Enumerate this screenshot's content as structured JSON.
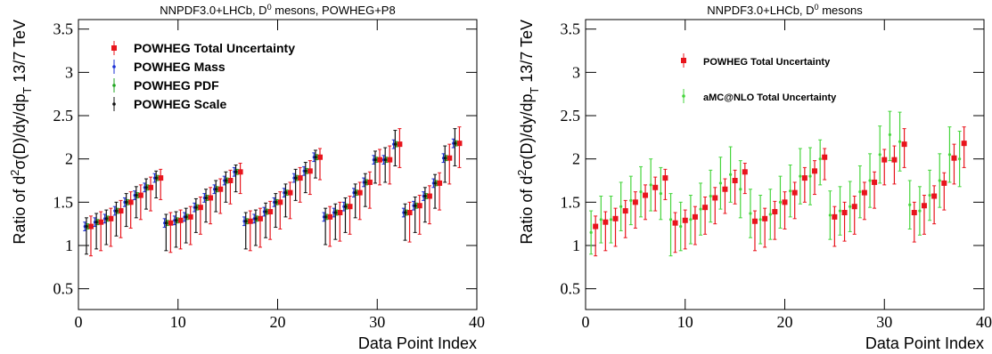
{
  "chart_data": [
    {
      "type": "errorbar",
      "title": [
        "NNPDF3.0+LHCb, D",
        "0",
        " mesons, POWHEG+P8"
      ],
      "ylabel": [
        "Ratio of d",
        "2",
        "σ(D)/dy/dp",
        "T",
        " 13/7 TeV"
      ],
      "xlabel": "Data Point Index",
      "xlim": [
        0,
        40
      ],
      "xticks": [
        0,
        10,
        20,
        30,
        40
      ],
      "ylim": [
        0.26,
        3.61
      ],
      "yticks": [
        0.5,
        1,
        1.5,
        2,
        2.5,
        3,
        3.5
      ],
      "legend": "top-left",
      "x": [
        1,
        2,
        3,
        4,
        5,
        6,
        7,
        8,
        9,
        10,
        11,
        12,
        13,
        14,
        15,
        16,
        17,
        18,
        19,
        20,
        21,
        22,
        23,
        24,
        25,
        26,
        27,
        28,
        29,
        30,
        31,
        32,
        33,
        34,
        35,
        36,
        37,
        38
      ],
      "series": [
        {
          "name": "POWHEG Total Uncertainty",
          "color": "#e8141c",
          "marker": "square",
          "values": [
            1.22,
            1.27,
            1.31,
            1.4,
            1.5,
            1.58,
            1.67,
            1.78,
            1.26,
            1.29,
            1.33,
            1.44,
            1.55,
            1.65,
            1.75,
            1.85,
            1.28,
            1.31,
            1.39,
            1.5,
            1.61,
            1.78,
            1.86,
            2.02,
            1.33,
            1.38,
            1.45,
            1.61,
            1.73,
            1.99,
            1.99,
            2.17,
            1.38,
            1.46,
            1.57,
            1.72,
            2.01,
            2.18
          ],
          "err_low": [
            0.34,
            0.33,
            0.32,
            0.31,
            0.3,
            0.28,
            0.27,
            0.25,
            0.34,
            0.33,
            0.32,
            0.31,
            0.3,
            0.28,
            0.27,
            0.25,
            0.34,
            0.33,
            0.32,
            0.31,
            0.3,
            0.28,
            0.27,
            0.26,
            0.34,
            0.33,
            0.32,
            0.31,
            0.3,
            0.29,
            0.28,
            0.27,
            0.34,
            0.33,
            0.32,
            0.31,
            0.3,
            0.28
          ],
          "err_high": [
            0.12,
            0.12,
            0.12,
            0.12,
            0.12,
            0.12,
            0.12,
            0.1,
            0.12,
            0.12,
            0.12,
            0.12,
            0.12,
            0.12,
            0.12,
            0.1,
            0.12,
            0.12,
            0.12,
            0.12,
            0.12,
            0.12,
            0.12,
            0.1,
            0.12,
            0.12,
            0.12,
            0.12,
            0.12,
            0.12,
            0.16,
            0.18,
            0.12,
            0.12,
            0.12,
            0.12,
            0.16,
            0.19
          ]
        },
        {
          "name": "POWHEG Mass",
          "color": "#1a2fd6",
          "marker": "dot",
          "values": [
            1.22,
            1.27,
            1.31,
            1.4,
            1.5,
            1.58,
            1.67,
            1.78,
            1.26,
            1.29,
            1.33,
            1.44,
            1.55,
            1.65,
            1.75,
            1.85,
            1.28,
            1.31,
            1.39,
            1.5,
            1.61,
            1.78,
            1.86,
            2.02,
            1.33,
            1.38,
            1.45,
            1.61,
            1.73,
            1.99,
            1.99,
            2.17,
            1.38,
            1.46,
            1.57,
            1.72,
            2.01,
            2.18
          ],
          "err_low": [
            0.05,
            0.05,
            0.05,
            0.05,
            0.05,
            0.05,
            0.05,
            0.05,
            0.05,
            0.05,
            0.05,
            0.05,
            0.05,
            0.05,
            0.05,
            0.05,
            0.05,
            0.05,
            0.05,
            0.05,
            0.05,
            0.05,
            0.05,
            0.05,
            0.05,
            0.05,
            0.05,
            0.05,
            0.05,
            0.05,
            0.05,
            0.05,
            0.05,
            0.05,
            0.05,
            0.05,
            0.05,
            0.05
          ],
          "err_high": [
            0.05,
            0.05,
            0.05,
            0.05,
            0.05,
            0.05,
            0.05,
            0.05,
            0.05,
            0.05,
            0.05,
            0.05,
            0.05,
            0.05,
            0.05,
            0.05,
            0.05,
            0.05,
            0.05,
            0.05,
            0.05,
            0.05,
            0.05,
            0.05,
            0.05,
            0.05,
            0.05,
            0.05,
            0.05,
            0.05,
            0.05,
            0.05,
            0.05,
            0.05,
            0.05,
            0.05,
            0.05,
            0.05
          ]
        },
        {
          "name": "POWHEG PDF",
          "color": "#1fa51f",
          "marker": "dot",
          "values": [
            1.22,
            1.27,
            1.31,
            1.4,
            1.5,
            1.58,
            1.67,
            1.78,
            1.26,
            1.29,
            1.33,
            1.44,
            1.55,
            1.65,
            1.75,
            1.85,
            1.28,
            1.31,
            1.39,
            1.5,
            1.61,
            1.78,
            1.86,
            2.02,
            1.33,
            1.38,
            1.45,
            1.61,
            1.73,
            1.99,
            1.99,
            2.17,
            1.38,
            1.46,
            1.57,
            1.72,
            2.01,
            2.18
          ],
          "err_low": [
            0.03,
            0.03,
            0.03,
            0.03,
            0.03,
            0.03,
            0.03,
            0.03,
            0.03,
            0.03,
            0.03,
            0.03,
            0.03,
            0.03,
            0.03,
            0.03,
            0.03,
            0.03,
            0.03,
            0.03,
            0.03,
            0.03,
            0.03,
            0.03,
            0.03,
            0.03,
            0.03,
            0.03,
            0.03,
            0.03,
            0.03,
            0.03,
            0.03,
            0.03,
            0.03,
            0.03,
            0.03,
            0.03
          ],
          "err_high": [
            0.03,
            0.03,
            0.03,
            0.03,
            0.03,
            0.03,
            0.03,
            0.03,
            0.03,
            0.03,
            0.03,
            0.03,
            0.03,
            0.03,
            0.03,
            0.03,
            0.03,
            0.03,
            0.03,
            0.03,
            0.03,
            0.03,
            0.03,
            0.03,
            0.03,
            0.03,
            0.03,
            0.03,
            0.03,
            0.03,
            0.03,
            0.03,
            0.03,
            0.03,
            0.03,
            0.03,
            0.03,
            0.03
          ]
        },
        {
          "name": "POWHEG Scale",
          "color": "#111111",
          "marker": "dot",
          "values": [
            1.22,
            1.27,
            1.31,
            1.4,
            1.5,
            1.58,
            1.67,
            1.78,
            1.26,
            1.29,
            1.33,
            1.44,
            1.55,
            1.65,
            1.75,
            1.85,
            1.28,
            1.31,
            1.39,
            1.5,
            1.61,
            1.78,
            1.86,
            2.02,
            1.33,
            1.38,
            1.45,
            1.61,
            1.73,
            1.99,
            1.99,
            2.17,
            1.38,
            1.46,
            1.57,
            1.72,
            2.01,
            2.18
          ],
          "err_low": [
            0.32,
            0.31,
            0.3,
            0.29,
            0.28,
            0.26,
            0.25,
            0.23,
            0.32,
            0.31,
            0.3,
            0.29,
            0.28,
            0.26,
            0.25,
            0.23,
            0.32,
            0.31,
            0.3,
            0.29,
            0.28,
            0.26,
            0.25,
            0.24,
            0.32,
            0.31,
            0.3,
            0.29,
            0.28,
            0.27,
            0.26,
            0.25,
            0.32,
            0.31,
            0.3,
            0.29,
            0.28,
            0.26
          ],
          "err_high": [
            0.1,
            0.1,
            0.1,
            0.1,
            0.1,
            0.1,
            0.1,
            0.08,
            0.1,
            0.1,
            0.1,
            0.1,
            0.1,
            0.1,
            0.1,
            0.08,
            0.1,
            0.1,
            0.1,
            0.1,
            0.1,
            0.1,
            0.1,
            0.08,
            0.1,
            0.1,
            0.1,
            0.1,
            0.1,
            0.1,
            0.14,
            0.16,
            0.1,
            0.1,
            0.1,
            0.1,
            0.14,
            0.17
          ]
        }
      ]
    },
    {
      "type": "errorbar",
      "title": [
        "NNPDF3.0+LHCb, D",
        "0",
        " mesons"
      ],
      "ylabel": [
        "Ratio of d",
        "2",
        "σ(D)/dy/dp",
        "T",
        " 13/7 TeV"
      ],
      "xlabel": "Data Point Index",
      "xlim": [
        0,
        40
      ],
      "xticks": [
        0,
        10,
        20,
        30,
        40
      ],
      "ylim": [
        0.26,
        3.61
      ],
      "yticks": [
        0.5,
        1,
        1.5,
        2,
        2.5,
        3,
        3.5
      ],
      "legend": "top-center",
      "x": [
        1,
        2,
        3,
        4,
        5,
        6,
        7,
        8,
        9,
        10,
        11,
        12,
        13,
        14,
        15,
        16,
        17,
        18,
        19,
        20,
        21,
        22,
        23,
        24,
        25,
        26,
        27,
        28,
        29,
        30,
        31,
        32,
        33,
        34,
        35,
        36,
        37,
        38
      ],
      "series": [
        {
          "name": "POWHEG Total Uncertainty",
          "color": "#e8141c",
          "marker": "square",
          "values": [
            1.22,
            1.27,
            1.31,
            1.4,
            1.5,
            1.58,
            1.67,
            1.78,
            1.26,
            1.29,
            1.33,
            1.44,
            1.55,
            1.65,
            1.75,
            1.85,
            1.28,
            1.31,
            1.39,
            1.5,
            1.61,
            1.78,
            1.86,
            2.02,
            1.33,
            1.38,
            1.45,
            1.61,
            1.73,
            1.99,
            1.99,
            2.17,
            1.38,
            1.46,
            1.57,
            1.72,
            2.01,
            2.18
          ],
          "err_low": [
            0.34,
            0.33,
            0.32,
            0.31,
            0.3,
            0.28,
            0.27,
            0.25,
            0.34,
            0.33,
            0.32,
            0.31,
            0.3,
            0.28,
            0.27,
            0.25,
            0.34,
            0.33,
            0.32,
            0.31,
            0.3,
            0.28,
            0.27,
            0.26,
            0.34,
            0.33,
            0.32,
            0.31,
            0.3,
            0.29,
            0.28,
            0.27,
            0.34,
            0.33,
            0.32,
            0.31,
            0.3,
            0.28
          ],
          "err_high": [
            0.12,
            0.12,
            0.12,
            0.12,
            0.12,
            0.12,
            0.12,
            0.1,
            0.12,
            0.12,
            0.12,
            0.12,
            0.12,
            0.12,
            0.12,
            0.1,
            0.12,
            0.12,
            0.12,
            0.12,
            0.12,
            0.12,
            0.12,
            0.1,
            0.12,
            0.12,
            0.12,
            0.12,
            0.12,
            0.12,
            0.16,
            0.18,
            0.12,
            0.12,
            0.12,
            0.12,
            0.16,
            0.19
          ]
        },
        {
          "name": "aMC@NLO Total Uncertainty",
          "color": "#46d53c",
          "marker": "dot",
          "values": [
            1.15,
            1.3,
            1.3,
            1.45,
            1.52,
            1.62,
            1.7,
            1.6,
            1.3,
            1.22,
            1.3,
            1.42,
            1.57,
            1.72,
            1.82,
            1.65,
            1.37,
            1.3,
            1.36,
            1.5,
            1.63,
            1.8,
            1.8,
            2.0,
            1.35,
            1.4,
            1.45,
            1.62,
            1.75,
            2.05,
            2.28,
            2.2,
            1.47,
            1.4,
            1.58,
            1.75,
            2.05,
            2.0
          ],
          "err_low": [
            0.25,
            0.27,
            0.27,
            0.28,
            0.28,
            0.29,
            0.3,
            0.3,
            0.42,
            0.28,
            0.28,
            0.3,
            0.3,
            0.3,
            0.32,
            0.33,
            0.28,
            0.28,
            0.29,
            0.3,
            0.3,
            0.32,
            0.33,
            0.3,
            0.28,
            0.28,
            0.29,
            0.3,
            0.31,
            0.33,
            0.3,
            0.34,
            0.28,
            0.28,
            0.29,
            0.31,
            0.32,
            0.32
          ],
          "err_high": [
            0.25,
            0.27,
            0.27,
            0.28,
            0.28,
            0.29,
            0.3,
            0.3,
            0.3,
            0.28,
            0.28,
            0.3,
            0.3,
            0.3,
            0.32,
            0.33,
            0.28,
            0.28,
            0.29,
            0.3,
            0.3,
            0.32,
            0.33,
            0.22,
            0.28,
            0.28,
            0.29,
            0.3,
            0.31,
            0.33,
            0.27,
            0.34,
            0.28,
            0.28,
            0.29,
            0.31,
            0.32,
            0.32
          ]
        }
      ]
    }
  ]
}
